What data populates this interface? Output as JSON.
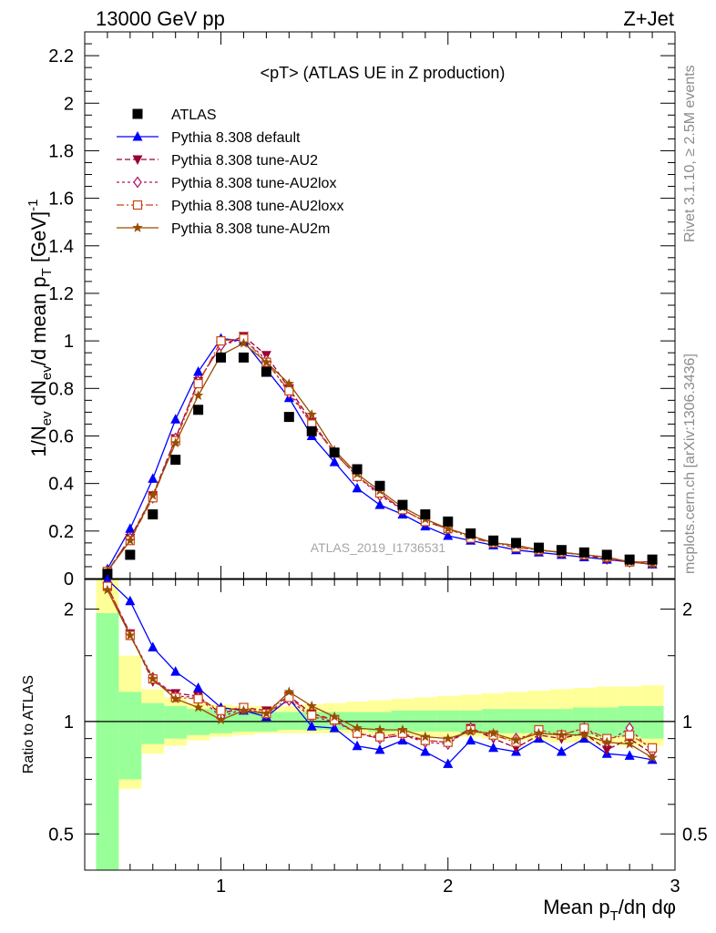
{
  "header": {
    "energy": "13000 GeV pp",
    "process": "Z+Jet",
    "plot_title": "<pT> (ATLAS UE in Z production)",
    "analysis_id": "ATLAS_2019_I1736531",
    "rivet_note": "Rivet 3.1.10, ≥ 2.5M events",
    "mcplots_note": "mcplots.cern.ch [arXiv:1306.3436]"
  },
  "colors": {
    "data": "#000000",
    "default": "#0000ff",
    "au2": "#990033",
    "au2lox": "#b01060",
    "au2loxx": "#cc4411",
    "au2m": "#994d00",
    "band_inner": "#99ff99",
    "band_outer": "#ffff99",
    "analysis_label": "#a6a6a6"
  },
  "chart_data": [
    {
      "type": "line",
      "panel": "main",
      "ylabel": "1/N_ev dN_ev/d mean p_T [GeV]^-1",
      "xlim": [
        0.4,
        3.0
      ],
      "ylim": [
        0,
        2.3
      ],
      "yticks": [
        "0",
        "0.2",
        "0.4",
        "0.6",
        "0.8",
        "1",
        "1.2",
        "1.4",
        "1.6",
        "1.8",
        "2",
        "2.2"
      ],
      "legend_position": "top-left",
      "x": [
        0.5,
        0.6,
        0.7,
        0.8,
        0.9,
        1.0,
        1.1,
        1.2,
        1.3,
        1.4,
        1.5,
        1.6,
        1.7,
        1.8,
        1.9,
        2.0,
        2.1,
        2.2,
        2.3,
        2.4,
        2.5,
        2.6,
        2.7,
        2.8,
        2.9
      ],
      "series": [
        {
          "name": "ATLAS",
          "key": "data",
          "marker": "square",
          "values": [
            0.02,
            0.1,
            0.27,
            0.5,
            0.71,
            0.93,
            0.93,
            0.87,
            0.68,
            0.62,
            0.53,
            0.46,
            0.39,
            0.31,
            0.27,
            0.24,
            0.19,
            0.16,
            0.15,
            0.13,
            0.12,
            0.11,
            0.1,
            0.08,
            0.08
          ]
        },
        {
          "name": "Pythia 8.308 default",
          "key": "default",
          "marker": "triangle-up",
          "dash": "",
          "values": [
            0.04,
            0.21,
            0.42,
            0.67,
            0.87,
            1.01,
            1.0,
            0.88,
            0.76,
            0.6,
            0.49,
            0.38,
            0.31,
            0.27,
            0.22,
            0.18,
            0.16,
            0.14,
            0.12,
            0.11,
            0.1,
            0.09,
            0.08,
            0.07,
            0.06
          ]
        },
        {
          "name": "Pythia 8.308 tune-AU2",
          "key": "au2",
          "marker": "triangle-down",
          "dash": "6,3",
          "values": [
            0.03,
            0.17,
            0.35,
            0.59,
            0.83,
            0.98,
            1.02,
            0.94,
            0.8,
            0.66,
            0.53,
            0.43,
            0.36,
            0.29,
            0.24,
            0.21,
            0.18,
            0.15,
            0.14,
            0.12,
            0.11,
            0.1,
            0.08,
            0.07,
            0.07
          ]
        },
        {
          "name": "Pythia 8.308 tune-AU2lox",
          "key": "au2lox",
          "marker": "diamond-open",
          "dash": "3,3",
          "values": [
            0.03,
            0.17,
            0.34,
            0.59,
            0.83,
            0.98,
            1.01,
            0.92,
            0.78,
            0.65,
            0.53,
            0.43,
            0.35,
            0.29,
            0.24,
            0.21,
            0.18,
            0.15,
            0.14,
            0.12,
            0.11,
            0.1,
            0.09,
            0.07,
            0.07
          ]
        },
        {
          "name": "Pythia 8.308 tune-AU2loxx",
          "key": "au2loxx",
          "marker": "square-open",
          "dash": "8,3,2,3",
          "values": [
            0.03,
            0.16,
            0.34,
            0.58,
            0.82,
            1.0,
            1.01,
            0.91,
            0.79,
            0.65,
            0.53,
            0.43,
            0.36,
            0.29,
            0.24,
            0.21,
            0.17,
            0.15,
            0.13,
            0.12,
            0.11,
            0.1,
            0.09,
            0.07,
            0.07
          ]
        },
        {
          "name": "Pythia 8.308 tune-AU2m",
          "key": "au2m",
          "marker": "star",
          "dash": "",
          "values": [
            0.03,
            0.16,
            0.35,
            0.57,
            0.77,
            0.94,
            0.99,
            0.91,
            0.82,
            0.69,
            0.54,
            0.44,
            0.37,
            0.3,
            0.25,
            0.21,
            0.18,
            0.15,
            0.14,
            0.12,
            0.11,
            0.1,
            0.09,
            0.07,
            0.06
          ]
        }
      ]
    },
    {
      "type": "line",
      "panel": "ratio",
      "xlabel": "Mean p_T/dη dφ",
      "ylabel": "Ratio to ATLAS",
      "scale": "log",
      "ylim": [
        0.4,
        2.4
      ],
      "yticks": [
        "0.5",
        "1",
        "2"
      ],
      "xticks": [
        "1",
        "2",
        "3"
      ],
      "x": [
        0.5,
        0.6,
        0.7,
        0.8,
        0.9,
        1.0,
        1.1,
        1.2,
        1.3,
        1.4,
        1.5,
        1.6,
        1.7,
        1.8,
        1.9,
        2.0,
        2.1,
        2.2,
        2.3,
        2.4,
        2.5,
        2.6,
        2.7,
        2.8,
        2.9
      ],
      "band_inner": {
        "low": [
          0.3,
          0.7,
          0.87,
          0.9,
          0.92,
          0.93,
          0.94,
          0.94,
          0.95,
          0.95,
          0.95,
          0.95,
          0.94,
          0.94,
          0.94,
          0.94,
          0.93,
          0.93,
          0.93,
          0.93,
          0.92,
          0.92,
          0.91,
          0.91,
          0.9
        ],
        "high": [
          1.95,
          1.2,
          1.12,
          1.1,
          1.08,
          1.08,
          1.07,
          1.06,
          1.06,
          1.06,
          1.06,
          1.06,
          1.06,
          1.07,
          1.07,
          1.07,
          1.07,
          1.08,
          1.08,
          1.08,
          1.08,
          1.09,
          1.09,
          1.1,
          1.1
        ]
      },
      "band_outer": {
        "low": [
          0.3,
          0.66,
          0.82,
          0.86,
          0.89,
          0.91,
          0.92,
          0.93,
          0.93,
          0.93,
          0.93,
          0.93,
          0.92,
          0.92,
          0.91,
          0.91,
          0.91,
          0.9,
          0.89,
          0.89,
          0.88,
          0.88,
          0.87,
          0.86,
          0.86
        ],
        "high": [
          2.4,
          1.5,
          1.22,
          1.16,
          1.12,
          1.11,
          1.1,
          1.1,
          1.1,
          1.11,
          1.12,
          1.13,
          1.14,
          1.15,
          1.16,
          1.17,
          1.18,
          1.19,
          1.2,
          1.21,
          1.22,
          1.23,
          1.24,
          1.24,
          1.25
        ]
      },
      "series": [
        {
          "key": "default",
          "marker": "triangle-up",
          "dash": "",
          "values": [
            2.4,
            2.1,
            1.58,
            1.36,
            1.23,
            1.09,
            1.07,
            1.03,
            1.15,
            0.97,
            0.96,
            0.86,
            0.84,
            0.89,
            0.83,
            0.77,
            0.89,
            0.85,
            0.83,
            0.9,
            0.83,
            0.9,
            0.82,
            0.81,
            0.79
          ]
        },
        {
          "key": "au2",
          "marker": "triangle-down",
          "dash": "6,3",
          "values": [
            2.3,
            1.72,
            1.28,
            1.19,
            1.17,
            1.05,
            1.09,
            1.07,
            1.17,
            1.05,
            1.01,
            0.93,
            0.9,
            0.92,
            0.89,
            0.88,
            0.96,
            0.9,
            0.85,
            0.92,
            0.9,
            0.93,
            0.84,
            0.9,
            0.82
          ]
        },
        {
          "key": "au2lox",
          "marker": "diamond-open",
          "dash": "3,3",
          "values": [
            2.3,
            1.71,
            1.31,
            1.17,
            1.16,
            1.03,
            1.08,
            1.05,
            1.14,
            1.03,
            1.0,
            0.93,
            0.9,
            0.92,
            0.88,
            0.87,
            0.96,
            0.91,
            0.9,
            0.93,
            0.92,
            0.96,
            0.88,
            0.96,
            0.83
          ]
        },
        {
          "key": "au2loxx",
          "marker": "square-open",
          "dash": "8,3,2,3",
          "values": [
            2.3,
            1.7,
            1.3,
            1.16,
            1.15,
            1.07,
            1.09,
            1.05,
            1.16,
            1.04,
            1.01,
            0.93,
            0.91,
            0.93,
            0.89,
            0.88,
            0.95,
            0.92,
            0.88,
            0.95,
            0.92,
            0.96,
            0.9,
            0.92,
            0.85
          ]
        },
        {
          "key": "au2m",
          "marker": "star",
          "dash": "",
          "values": [
            2.25,
            1.7,
            1.3,
            1.15,
            1.09,
            1.01,
            1.07,
            1.05,
            1.2,
            1.1,
            1.03,
            0.96,
            0.95,
            0.95,
            0.91,
            0.9,
            0.94,
            0.93,
            0.89,
            0.93,
            0.92,
            0.92,
            0.88,
            0.87,
            0.8
          ]
        }
      ]
    }
  ]
}
